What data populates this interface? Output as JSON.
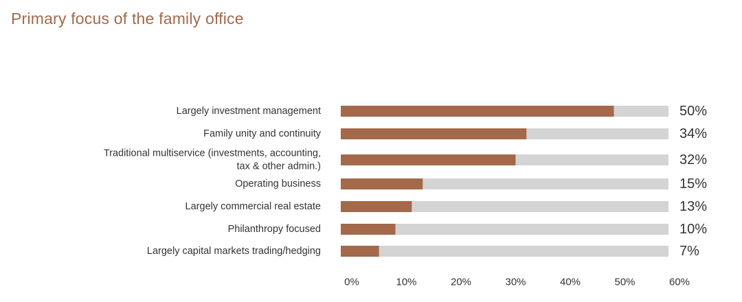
{
  "chart_data": {
    "type": "bar",
    "orientation": "horizontal",
    "title": "Primary focus of the family office",
    "categories": [
      [
        "Largely investment management"
      ],
      [
        "Family unity and continuity"
      ],
      [
        "Traditional multiservice (investments, accounting,",
        "tax & other admin.)"
      ],
      [
        "Operating business"
      ],
      [
        "Largely commercial real estate"
      ],
      [
        "Philanthropy focused"
      ],
      [
        "Largely capital markets trading/hedging"
      ]
    ],
    "values": [
      50,
      34,
      32,
      15,
      13,
      10,
      7
    ],
    "value_labels": [
      "50%",
      "34%",
      "32%",
      "15%",
      "13%",
      "10%",
      "7%"
    ],
    "xlim": [
      0,
      60
    ],
    "x_ticks": [
      "0%",
      "10%",
      "20%",
      "30%",
      "40%",
      "50%",
      "60%"
    ],
    "grid": false,
    "legend": "none",
    "colors": {
      "bar": "#a3694a",
      "track": "#d4d4d4",
      "title": "#a3694a",
      "text": "#333333"
    }
  }
}
